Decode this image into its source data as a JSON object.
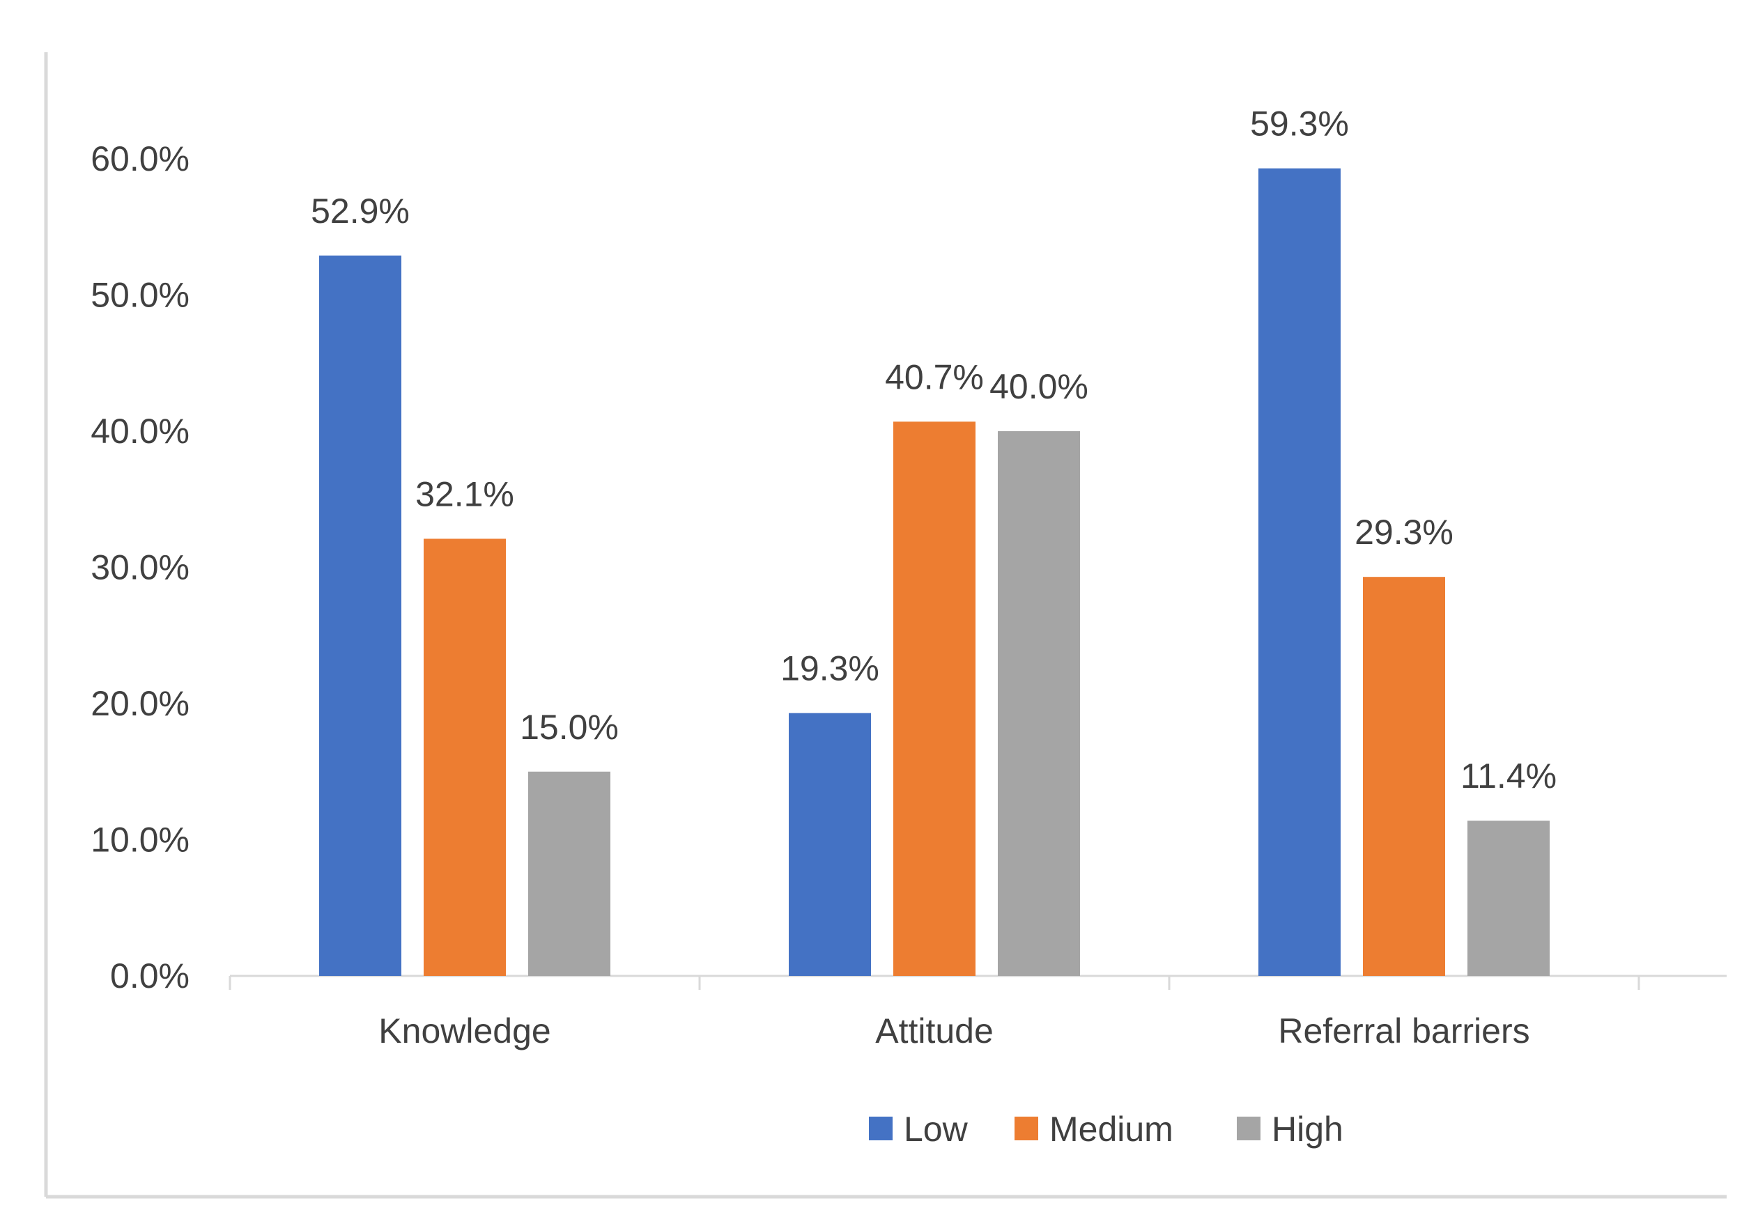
{
  "chart_data": {
    "type": "bar",
    "title": "",
    "xlabel": "",
    "ylabel": "",
    "categories": [
      "Knowledge",
      "Attitude",
      "Referral barriers"
    ],
    "series": [
      {
        "name": "Low",
        "values": [
          52.9,
          19.3,
          59.3
        ],
        "color": "#4472c4"
      },
      {
        "name": "Medium",
        "values": [
          32.1,
          40.7,
          29.3
        ],
        "color": "#ed7d31"
      },
      {
        "name": "High",
        "values": [
          15.0,
          40.0,
          11.4
        ],
        "color": "#a5a5a5"
      }
    ],
    "data_labels": [
      [
        "52.9%",
        "19.3%",
        "59.3%"
      ],
      [
        "32.1%",
        "40.7%",
        "29.3%"
      ],
      [
        "15.0%",
        "40.0%",
        "11.4%"
      ]
    ],
    "ylim": [
      0,
      60
    ],
    "yticks": [
      0,
      10,
      20,
      30,
      40,
      50,
      60
    ],
    "ytick_labels": [
      "0.0%",
      "10.0%",
      "20.0%",
      "30.0%",
      "40.0%",
      "50.0%",
      "60.0%"
    ],
    "grid": false,
    "legend_position": "bottom-center",
    "axis_color": "#d9d9d9",
    "text_color": "#404040"
  }
}
